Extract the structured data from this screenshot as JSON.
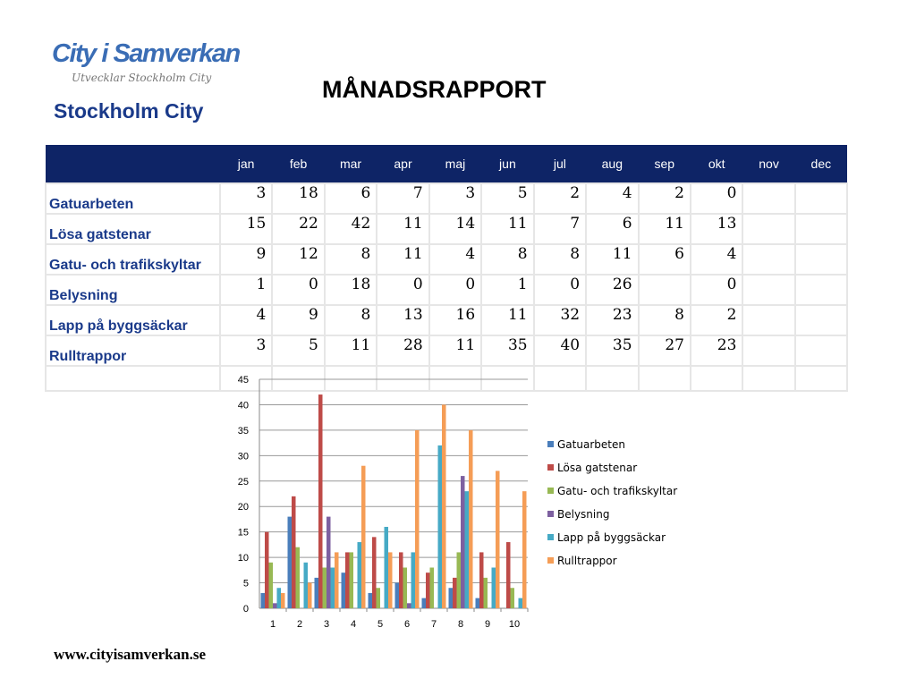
{
  "header": {
    "logo": "City i Samverkan",
    "tagline": "Utvecklar Stockholm City",
    "org": "Stockholm City",
    "title": "MÅNADSRAPPORT"
  },
  "months": [
    "jan",
    "feb",
    "mar",
    "apr",
    "maj",
    "jun",
    "jul",
    "aug",
    "sep",
    "okt",
    "nov",
    "dec"
  ],
  "rows": [
    {
      "label": "Gatuarbeten",
      "values": [
        3,
        18,
        6,
        7,
        3,
        5,
        2,
        4,
        2,
        0,
        null,
        null
      ]
    },
    {
      "label": "Lösa gatstenar",
      "values": [
        15,
        22,
        42,
        11,
        14,
        11,
        7,
        6,
        11,
        13,
        null,
        null
      ]
    },
    {
      "label": "Gatu- och trafikskyltar",
      "values": [
        9,
        12,
        8,
        11,
        4,
        8,
        8,
        11,
        6,
        4,
        null,
        null
      ]
    },
    {
      "label": "Belysning",
      "values": [
        1,
        0,
        18,
        0,
        0,
        1,
        0,
        26,
        null,
        0,
        null,
        null
      ]
    },
    {
      "label": "Lapp på byggsäckar",
      "values": [
        4,
        9,
        8,
        13,
        16,
        11,
        32,
        23,
        8,
        2,
        null,
        null
      ]
    },
    {
      "label": "Rulltrappor",
      "values": [
        3,
        5,
        11,
        28,
        11,
        35,
        40,
        35,
        27,
        23,
        null,
        null
      ]
    }
  ],
  "chart_data": {
    "type": "bar",
    "categories": [
      "1",
      "2",
      "3",
      "4",
      "5",
      "6",
      "7",
      "8",
      "9",
      "10"
    ],
    "ylim": [
      0,
      45
    ],
    "yticks": [
      0,
      5,
      10,
      15,
      20,
      25,
      30,
      35,
      40,
      45
    ],
    "legend": "right",
    "series": [
      {
        "name": "Gatuarbeten",
        "color": "#4a7ebb",
        "values": [
          3,
          18,
          6,
          7,
          3,
          5,
          2,
          4,
          2,
          0
        ]
      },
      {
        "name": "Lösa gatstenar",
        "color": "#be4b48",
        "values": [
          15,
          22,
          42,
          11,
          14,
          11,
          7,
          6,
          11,
          13
        ]
      },
      {
        "name": "Gatu- och trafikskyltar",
        "color": "#98b954",
        "values": [
          9,
          12,
          8,
          11,
          4,
          8,
          8,
          11,
          6,
          4
        ]
      },
      {
        "name": "Belysning",
        "color": "#7d60a0",
        "values": [
          1,
          0,
          18,
          0,
          0,
          1,
          0,
          26,
          null,
          0
        ]
      },
      {
        "name": "Lapp på byggsäckar",
        "color": "#46aac5",
        "values": [
          4,
          9,
          8,
          13,
          16,
          11,
          32,
          23,
          8,
          2
        ]
      },
      {
        "name": "Rulltrappor",
        "color": "#f59d56",
        "values": [
          3,
          5,
          11,
          28,
          11,
          35,
          40,
          35,
          27,
          23
        ]
      }
    ]
  },
  "footer": "www.cityisamverkan.se"
}
